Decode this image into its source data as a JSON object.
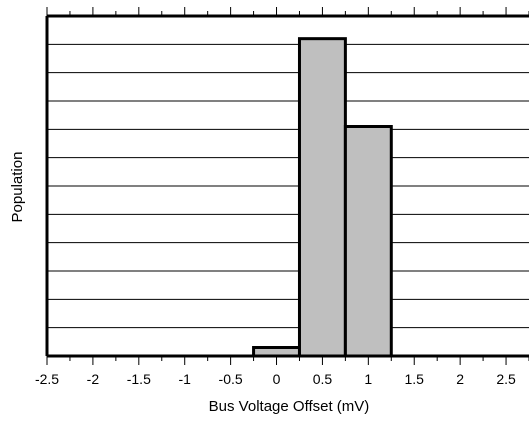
{
  "chart_data": {
    "type": "bar",
    "title": "",
    "xlabel": "Bus Voltage Offset (mV)",
    "ylabel": "Population",
    "x_ticks": [
      -2.5,
      -2,
      -1.5,
      -1,
      -0.5,
      0,
      0.5,
      1,
      1.5,
      2,
      2.5
    ],
    "x_tick_labels": [
      "-2.5",
      "-2",
      "-1.5",
      "-1",
      "-0.5",
      "0",
      "0.5",
      "1",
      "1.5",
      "2",
      "2.5"
    ],
    "xlim": [
      -2.5,
      2.75
    ],
    "ylim": [
      0,
      12
    ],
    "y_tick_labels_shown": false,
    "grid": "horizontal",
    "bins": [
      {
        "x0": -0.25,
        "x1": 0.25,
        "value": 0.3
      },
      {
        "x0": 0.25,
        "x1": 0.75,
        "value": 11.2
      },
      {
        "x0": 0.75,
        "x1": 1.25,
        "value": 8.1
      }
    ],
    "colors": {
      "bar_fill": "#bfbfbf",
      "bar_stroke": "#000000",
      "grid": "#000000",
      "axis": "#000000"
    }
  }
}
